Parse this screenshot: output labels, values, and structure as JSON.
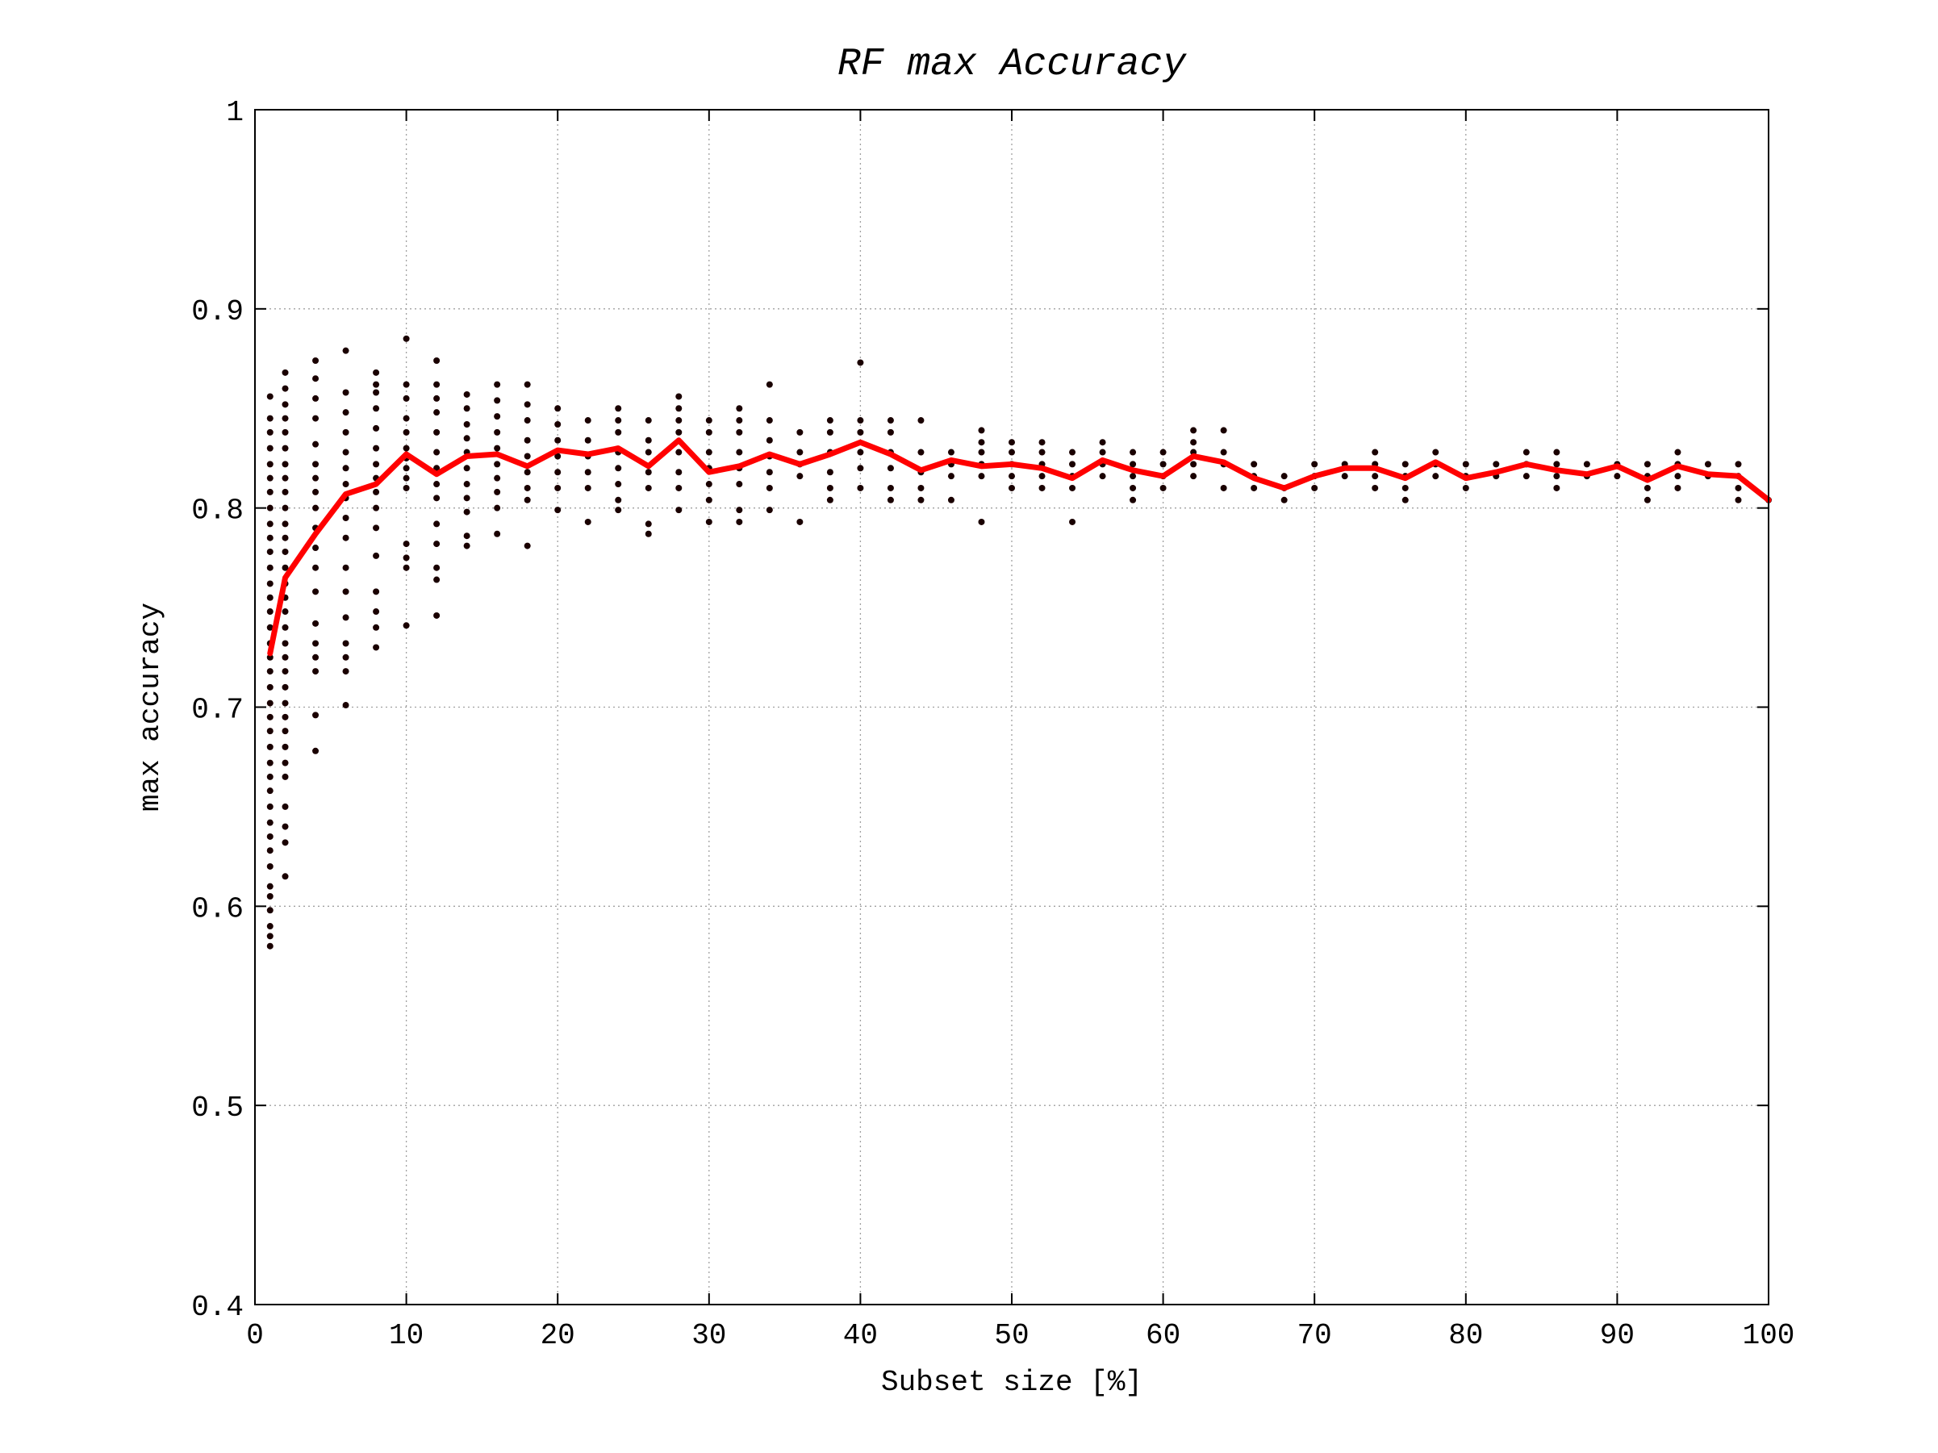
{
  "chart_data": {
    "type": "scatter",
    "title": "RF max Accuracy",
    "xlabel": "Subset size [%]",
    "ylabel": "max accuracy",
    "xlim": [
      0,
      100
    ],
    "ylim": [
      0.4,
      1
    ],
    "xticks": [
      0,
      10,
      20,
      30,
      40,
      50,
      60,
      70,
      80,
      90,
      100
    ],
    "yticks": [
      0.4,
      0.5,
      0.6,
      0.7,
      0.8,
      0.9,
      1
    ],
    "xtick_labels": [
      "0",
      "10",
      "20",
      "30",
      "40",
      "50",
      "60",
      "70",
      "80",
      "90",
      "100"
    ],
    "ytick_labels": [
      "0.4",
      "0.5",
      "0.6",
      "0.7",
      "0.8",
      "0.9",
      "1"
    ],
    "grid": true,
    "line_color": "#ff0000",
    "scatter_color": "#1a0000",
    "scatter": [
      {
        "x": 1,
        "y": [
          0.58,
          0.585,
          0.59,
          0.598,
          0.605,
          0.61,
          0.62,
          0.628,
          0.635,
          0.642,
          0.65,
          0.658,
          0.665,
          0.672,
          0.68,
          0.688,
          0.695,
          0.702,
          0.71,
          0.718,
          0.725,
          0.732,
          0.74,
          0.748,
          0.755,
          0.762,
          0.77,
          0.778,
          0.785,
          0.792,
          0.8,
          0.808,
          0.815,
          0.822,
          0.83,
          0.838,
          0.845,
          0.856
        ]
      },
      {
        "x": 2,
        "y": [
          0.615,
          0.632,
          0.64,
          0.65,
          0.665,
          0.672,
          0.68,
          0.688,
          0.695,
          0.702,
          0.71,
          0.718,
          0.725,
          0.732,
          0.74,
          0.748,
          0.755,
          0.762,
          0.77,
          0.778,
          0.785,
          0.792,
          0.8,
          0.808,
          0.815,
          0.822,
          0.83,
          0.838,
          0.845,
          0.852,
          0.86,
          0.868
        ]
      },
      {
        "x": 4,
        "y": [
          0.678,
          0.696,
          0.718,
          0.725,
          0.732,
          0.742,
          0.758,
          0.77,
          0.78,
          0.79,
          0.8,
          0.808,
          0.815,
          0.822,
          0.832,
          0.845,
          0.855,
          0.865,
          0.874
        ]
      },
      {
        "x": 6,
        "y": [
          0.701,
          0.718,
          0.725,
          0.732,
          0.745,
          0.758,
          0.77,
          0.785,
          0.795,
          0.805,
          0.812,
          0.82,
          0.828,
          0.838,
          0.848,
          0.858,
          0.879
        ]
      },
      {
        "x": 8,
        "y": [
          0.73,
          0.74,
          0.748,
          0.758,
          0.776,
          0.79,
          0.8,
          0.808,
          0.815,
          0.822,
          0.83,
          0.84,
          0.85,
          0.858,
          0.862,
          0.868
        ]
      },
      {
        "x": 10,
        "y": [
          0.741,
          0.77,
          0.775,
          0.782,
          0.81,
          0.815,
          0.82,
          0.825,
          0.83,
          0.838,
          0.845,
          0.855,
          0.862,
          0.885
        ]
      },
      {
        "x": 12,
        "y": [
          0.746,
          0.764,
          0.77,
          0.782,
          0.792,
          0.805,
          0.812,
          0.82,
          0.828,
          0.838,
          0.848,
          0.855,
          0.862,
          0.874
        ]
      },
      {
        "x": 14,
        "y": [
          0.781,
          0.786,
          0.798,
          0.805,
          0.812,
          0.82,
          0.828,
          0.835,
          0.842,
          0.85,
          0.857
        ]
      },
      {
        "x": 16,
        "y": [
          0.787,
          0.8,
          0.808,
          0.815,
          0.822,
          0.83,
          0.838,
          0.846,
          0.854,
          0.862
        ]
      },
      {
        "x": 18,
        "y": [
          0.781,
          0.804,
          0.81,
          0.818,
          0.826,
          0.834,
          0.844,
          0.852,
          0.862
        ]
      },
      {
        "x": 20,
        "y": [
          0.799,
          0.81,
          0.818,
          0.826,
          0.834,
          0.842,
          0.85
        ]
      },
      {
        "x": 22,
        "y": [
          0.793,
          0.81,
          0.818,
          0.826,
          0.834,
          0.844
        ]
      },
      {
        "x": 24,
        "y": [
          0.799,
          0.804,
          0.812,
          0.82,
          0.828,
          0.838,
          0.844,
          0.85
        ]
      },
      {
        "x": 26,
        "y": [
          0.787,
          0.792,
          0.81,
          0.818,
          0.828,
          0.834,
          0.844
        ]
      },
      {
        "x": 28,
        "y": [
          0.799,
          0.81,
          0.818,
          0.828,
          0.838,
          0.844,
          0.85,
          0.856
        ]
      },
      {
        "x": 30,
        "y": [
          0.793,
          0.804,
          0.812,
          0.82,
          0.828,
          0.838,
          0.844
        ]
      },
      {
        "x": 32,
        "y": [
          0.793,
          0.799,
          0.812,
          0.82,
          0.828,
          0.838,
          0.844,
          0.85
        ]
      },
      {
        "x": 34,
        "y": [
          0.799,
          0.81,
          0.818,
          0.826,
          0.834,
          0.844,
          0.862
        ]
      },
      {
        "x": 36,
        "y": [
          0.793,
          0.816,
          0.822,
          0.828,
          0.838
        ]
      },
      {
        "x": 38,
        "y": [
          0.804,
          0.81,
          0.818,
          0.828,
          0.838,
          0.844
        ]
      },
      {
        "x": 40,
        "y": [
          0.81,
          0.82,
          0.828,
          0.838,
          0.844,
          0.873
        ]
      },
      {
        "x": 42,
        "y": [
          0.804,
          0.81,
          0.82,
          0.828,
          0.838,
          0.844
        ]
      },
      {
        "x": 44,
        "y": [
          0.804,
          0.81,
          0.818,
          0.828,
          0.844
        ]
      },
      {
        "x": 46,
        "y": [
          0.804,
          0.816,
          0.822,
          0.828
        ]
      },
      {
        "x": 48,
        "y": [
          0.793,
          0.816,
          0.822,
          0.828,
          0.833,
          0.839
        ]
      },
      {
        "x": 50,
        "y": [
          0.81,
          0.816,
          0.822,
          0.828,
          0.833
        ]
      },
      {
        "x": 52,
        "y": [
          0.81,
          0.816,
          0.822,
          0.828,
          0.833
        ]
      },
      {
        "x": 54,
        "y": [
          0.793,
          0.81,
          0.816,
          0.822,
          0.828
        ]
      },
      {
        "x": 56,
        "y": [
          0.816,
          0.822,
          0.828,
          0.833
        ]
      },
      {
        "x": 58,
        "y": [
          0.804,
          0.81,
          0.816,
          0.822,
          0.828
        ]
      },
      {
        "x": 60,
        "y": [
          0.81,
          0.816,
          0.822,
          0.828
        ]
      },
      {
        "x": 62,
        "y": [
          0.816,
          0.822,
          0.828,
          0.833,
          0.839
        ]
      },
      {
        "x": 64,
        "y": [
          0.81,
          0.822,
          0.828,
          0.839
        ]
      },
      {
        "x": 66,
        "y": [
          0.81,
          0.816,
          0.822
        ]
      },
      {
        "x": 68,
        "y": [
          0.804,
          0.81,
          0.816
        ]
      },
      {
        "x": 70,
        "y": [
          0.81,
          0.816,
          0.822
        ]
      },
      {
        "x": 72,
        "y": [
          0.816,
          0.822
        ]
      },
      {
        "x": 74,
        "y": [
          0.81,
          0.816,
          0.822,
          0.828
        ]
      },
      {
        "x": 76,
        "y": [
          0.804,
          0.81,
          0.816,
          0.822
        ]
      },
      {
        "x": 78,
        "y": [
          0.816,
          0.822,
          0.828
        ]
      },
      {
        "x": 80,
        "y": [
          0.81,
          0.816,
          0.822
        ]
      },
      {
        "x": 82,
        "y": [
          0.816,
          0.822
        ]
      },
      {
        "x": 84,
        "y": [
          0.816,
          0.822,
          0.828
        ]
      },
      {
        "x": 86,
        "y": [
          0.81,
          0.816,
          0.822,
          0.828
        ]
      },
      {
        "x": 88,
        "y": [
          0.816,
          0.822
        ]
      },
      {
        "x": 90,
        "y": [
          0.816,
          0.822
        ]
      },
      {
        "x": 92,
        "y": [
          0.804,
          0.81,
          0.816,
          0.822
        ]
      },
      {
        "x": 94,
        "y": [
          0.81,
          0.816,
          0.822,
          0.828
        ]
      },
      {
        "x": 96,
        "y": [
          0.816,
          0.822
        ]
      },
      {
        "x": 98,
        "y": [
          0.804,
          0.81,
          0.816,
          0.822
        ]
      },
      {
        "x": 100,
        "y": [
          0.804
        ]
      }
    ],
    "series": [
      {
        "x": [
          1,
          2,
          4,
          6,
          8,
          10,
          12,
          14,
          16,
          18,
          20,
          22,
          24,
          26,
          28,
          30,
          32,
          34,
          36,
          38,
          40,
          42,
          44,
          46,
          48,
          50,
          52,
          54,
          56,
          58,
          60,
          62,
          64,
          66,
          68,
          70,
          72,
          74,
          76,
          78,
          80,
          82,
          84,
          86,
          88,
          90,
          92,
          94,
          96,
          98,
          100
        ],
        "values": [
          0.727,
          0.765,
          0.787,
          0.807,
          0.812,
          0.827,
          0.817,
          0.826,
          0.827,
          0.821,
          0.829,
          0.827,
          0.83,
          0.821,
          0.834,
          0.818,
          0.821,
          0.827,
          0.822,
          0.827,
          0.833,
          0.827,
          0.819,
          0.824,
          0.821,
          0.822,
          0.82,
          0.815,
          0.824,
          0.819,
          0.816,
          0.826,
          0.823,
          0.815,
          0.81,
          0.816,
          0.82,
          0.82,
          0.815,
          0.823,
          0.815,
          0.818,
          0.822,
          0.819,
          0.817,
          0.821,
          0.814,
          0.821,
          0.817,
          0.816,
          0.804
        ]
      }
    ]
  }
}
